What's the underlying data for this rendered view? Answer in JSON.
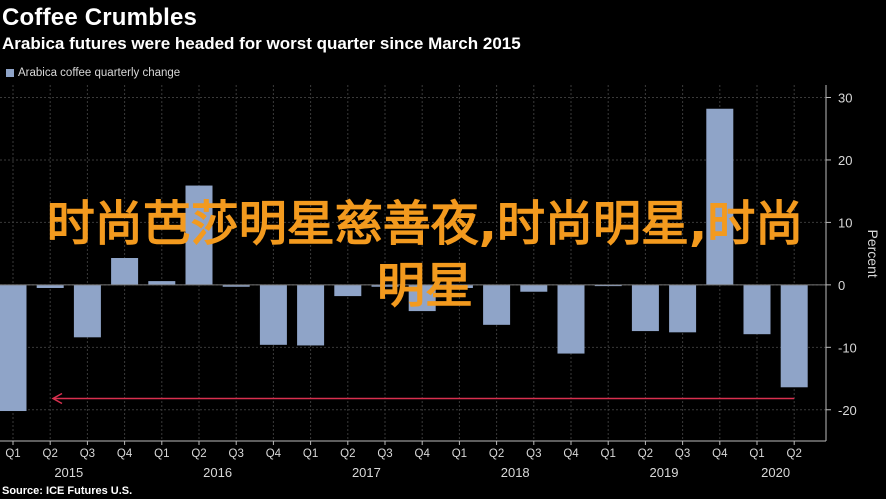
{
  "header": {
    "title": "Coffee Crumbles",
    "subtitle": "Arabica futures were headed for worst quarter since March 2015"
  },
  "legend": {
    "label": "Arabica coffee quarterly change",
    "color": "#8fa4c8"
  },
  "overlay_text": "时尚芭莎明星慈善夜,时尚明星,时尚明星",
  "source": "Source: ICE Futures U.S.",
  "colors": {
    "bar": "#8fa4c8",
    "arrow": "#d9304f",
    "grid": "#3a3a3a",
    "axis": "#bbbbbb"
  },
  "chart_data": {
    "type": "bar",
    "title": "Coffee Crumbles",
    "subtitle": "Arabica futures were headed for worst quarter since March 2015",
    "ylabel": "Percent",
    "ylim": [
      -25,
      32
    ],
    "yticks": [
      30,
      20,
      10,
      0,
      -10,
      -20
    ],
    "y_axis_position": "right",
    "grid": true,
    "legend_position": "top-left",
    "categories": [
      "Q1",
      "Q2",
      "Q3",
      "Q4",
      "Q1",
      "Q2",
      "Q3",
      "Q4",
      "Q1",
      "Q2",
      "Q3",
      "Q4",
      "Q1",
      "Q2",
      "Q3",
      "Q4",
      "Q1",
      "Q2",
      "Q3",
      "Q4",
      "Q1",
      "Q2"
    ],
    "year_labels": [
      {
        "label": "2015",
        "start": 0,
        "end": 3
      },
      {
        "label": "2016",
        "start": 4,
        "end": 7
      },
      {
        "label": "2017",
        "start": 8,
        "end": 11
      },
      {
        "label": "2018",
        "start": 12,
        "end": 15
      },
      {
        "label": "2019",
        "start": 16,
        "end": 19
      },
      {
        "label": "2020",
        "start": 20,
        "end": 21
      }
    ],
    "series": [
      {
        "name": "Arabica coffee quarterly change",
        "values": [
          -20.2,
          -0.5,
          -8.4,
          4.3,
          0.6,
          15.9,
          -0.3,
          -9.6,
          -9.7,
          -1.8,
          -0.3,
          -4.2,
          -0.5,
          -6.4,
          -1.1,
          -11.0,
          -0.2,
          -7.4,
          -7.6,
          28.2,
          -7.9,
          -16.4
        ]
      }
    ],
    "annotations": [
      {
        "type": "arrow",
        "from_index": 21,
        "to_index": 0,
        "y": -18.2
      }
    ]
  }
}
